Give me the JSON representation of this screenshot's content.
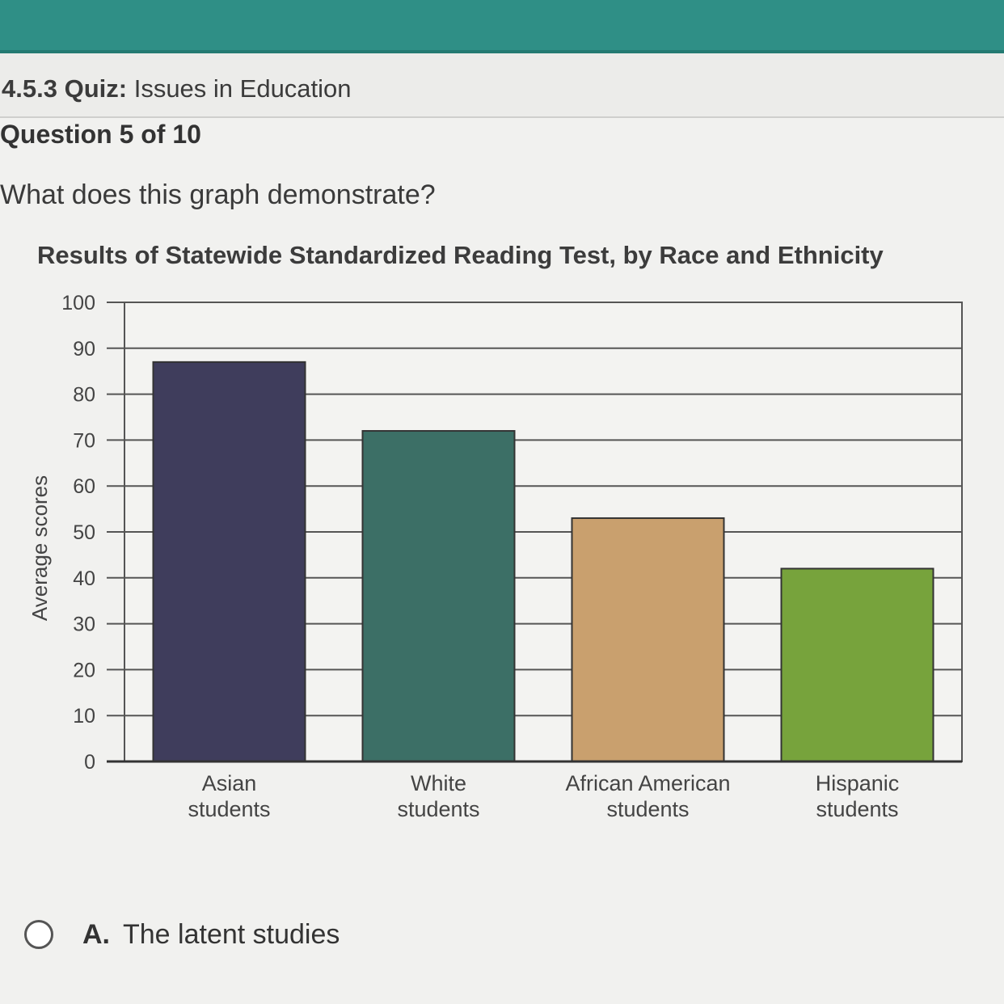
{
  "header": {
    "quiz_number": "4.5.3",
    "quiz_kind": "Quiz:",
    "quiz_name": "Issues in Education",
    "question_progress": "Question 5 of 10"
  },
  "question": {
    "prompt": "What does this graph demonstrate?"
  },
  "chart_data": {
    "type": "bar",
    "title": "Results of Statewide Standardized Reading Test, by Race and Ethnicity",
    "ylabel": "Average scores",
    "xlabel": "",
    "ylim": [
      0,
      100
    ],
    "yticks": [
      "0",
      "10",
      "20",
      "30",
      "40",
      "50",
      "60",
      "70",
      "80",
      "90",
      "100"
    ],
    "categories": [
      [
        "Asian",
        "students"
      ],
      [
        "White",
        "students"
      ],
      [
        "African American",
        "students"
      ],
      [
        "Hispanic",
        "students"
      ]
    ],
    "values": [
      87,
      72,
      53,
      42
    ],
    "colors": [
      "#3f3d5c",
      "#3c6f66",
      "#c9a06e",
      "#77a33c"
    ],
    "grid": true
  },
  "options": [
    {
      "letter": "A.",
      "text": "The latent studies"
    }
  ]
}
